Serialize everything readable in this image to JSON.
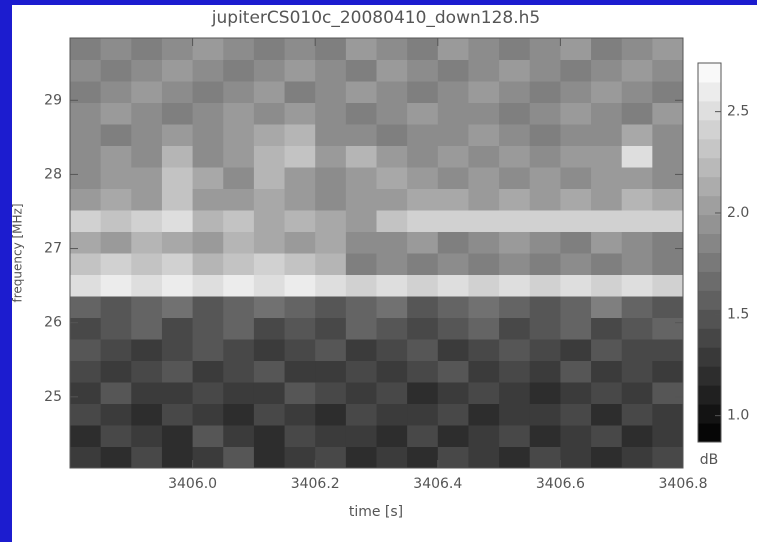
{
  "chart_data": {
    "type": "heatmap",
    "title": "jupiterCS010c_20080410_down128.h5",
    "xlabel": "time [s]",
    "ylabel": "frequency [MHz]",
    "colorbar_label": "dB",
    "colormap": "gray",
    "xlim": [
      3405.8,
      3406.8
    ],
    "ylim": [
      24.04,
      29.84
    ],
    "zlim": [
      0.87,
      2.74
    ],
    "xticks": [
      {
        "value": 3406.0,
        "label": "3406.0"
      },
      3406.2,
      3406.4,
      3406.6,
      3406.8
    ],
    "yticks": [
      25,
      26,
      27,
      28,
      29
    ],
    "colorbar_ticks": [
      {
        "value": 1.0,
        "label": "1.0"
      },
      1.5,
      {
        "value": 2.0,
        "label": "2.0"
      },
      2.5
    ],
    "xbins": [
      3405.8,
      3405.85,
      3405.9,
      3405.95,
      3406.0,
      3406.05,
      3406.1,
      3406.15,
      3406.2,
      3406.25,
      3406.3,
      3406.35,
      3406.4,
      3406.45,
      3406.5,
      3406.55,
      3406.6,
      3406.65,
      3406.7,
      3406.75,
      3406.8
    ],
    "ybins": [
      24.04,
      24.33,
      24.62,
      24.91,
      25.2,
      25.49,
      25.78,
      26.07,
      26.36,
      26.65,
      26.94,
      27.23,
      27.52,
      27.81,
      28.1,
      28.39,
      28.68,
      28.97,
      29.26,
      29.55,
      29.84
    ],
    "values": [
      [
        1.3,
        1.2,
        1.4,
        1.2,
        1.3,
        1.5,
        1.2,
        1.3,
        1.4,
        1.2,
        1.3,
        1.2,
        1.4,
        1.3,
        1.2,
        1.4,
        1.3,
        1.2,
        1.3,
        1.4
      ],
      [
        1.2,
        1.4,
        1.3,
        1.2,
        1.5,
        1.3,
        1.2,
        1.4,
        1.3,
        1.3,
        1.2,
        1.4,
        1.2,
        1.3,
        1.4,
        1.2,
        1.3,
        1.4,
        1.2,
        1.3
      ],
      [
        1.4,
        1.3,
        1.2,
        1.4,
        1.3,
        1.2,
        1.4,
        1.3,
        1.2,
        1.4,
        1.3,
        1.3,
        1.4,
        1.2,
        1.3,
        1.3,
        1.4,
        1.2,
        1.4,
        1.3
      ],
      [
        1.3,
        1.5,
        1.3,
        1.3,
        1.4,
        1.3,
        1.3,
        1.5,
        1.4,
        1.3,
        1.4,
        1.2,
        1.3,
        1.4,
        1.3,
        1.2,
        1.3,
        1.4,
        1.3,
        1.5
      ],
      [
        1.4,
        1.3,
        1.4,
        1.5,
        1.3,
        1.4,
        1.5,
        1.3,
        1.3,
        1.4,
        1.3,
        1.4,
        1.5,
        1.3,
        1.4,
        1.3,
        1.5,
        1.3,
        1.4,
        1.3
      ],
      [
        1.5,
        1.4,
        1.3,
        1.4,
        1.5,
        1.4,
        1.3,
        1.4,
        1.5,
        1.3,
        1.4,
        1.5,
        1.3,
        1.4,
        1.5,
        1.4,
        1.3,
        1.5,
        1.4,
        1.4
      ],
      [
        1.4,
        1.5,
        1.6,
        1.4,
        1.5,
        1.6,
        1.4,
        1.5,
        1.4,
        1.6,
        1.5,
        1.4,
        1.5,
        1.6,
        1.4,
        1.5,
        1.6,
        1.4,
        1.5,
        1.6
      ],
      [
        1.6,
        1.5,
        1.6,
        1.7,
        1.5,
        1.6,
        1.7,
        1.6,
        1.5,
        1.6,
        1.7,
        1.5,
        1.6,
        1.7,
        1.6,
        1.5,
        1.6,
        1.8,
        1.6,
        1.5
      ],
      [
        2.5,
        2.6,
        2.5,
        2.6,
        2.5,
        2.6,
        2.5,
        2.6,
        2.5,
        2.4,
        2.5,
        2.4,
        2.5,
        2.4,
        2.5,
        2.4,
        2.5,
        2.4,
        2.5,
        2.4
      ],
      [
        2.3,
        2.4,
        2.3,
        2.4,
        2.2,
        2.3,
        2.4,
        2.3,
        2.2,
        1.8,
        1.9,
        1.8,
        1.9,
        1.8,
        1.9,
        1.8,
        1.9,
        1.8,
        1.9,
        1.8
      ],
      [
        2.1,
        2.0,
        2.2,
        2.1,
        2.0,
        2.2,
        2.1,
        2.0,
        2.1,
        1.9,
        1.9,
        2.0,
        1.8,
        1.9,
        2.0,
        1.9,
        1.8,
        2.0,
        1.9,
        1.8
      ],
      [
        2.4,
        2.3,
        2.4,
        2.5,
        2.2,
        2.3,
        2.1,
        2.2,
        2.1,
        2.0,
        2.3,
        2.4,
        2.4,
        2.4,
        2.4,
        2.4,
        2.4,
        2.4,
        2.4,
        2.4
      ],
      [
        2.0,
        2.1,
        2.0,
        2.3,
        2.0,
        2.0,
        2.1,
        2.0,
        1.9,
        2.0,
        2.0,
        2.1,
        2.1,
        2.0,
        2.1,
        2.0,
        2.1,
        2.0,
        2.2,
        2.1
      ],
      [
        1.9,
        2.0,
        2.0,
        2.3,
        2.1,
        1.9,
        2.2,
        2.0,
        1.9,
        2.0,
        2.1,
        2.0,
        1.9,
        2.0,
        1.9,
        2.0,
        1.9,
        2.0,
        2.0,
        1.9
      ],
      [
        1.9,
        2.0,
        1.9,
        2.2,
        1.9,
        2.0,
        2.2,
        2.3,
        2.0,
        2.2,
        2.0,
        1.9,
        2.0,
        1.9,
        2.0,
        1.9,
        2.0,
        2.0,
        2.5,
        1.9
      ],
      [
        1.9,
        1.8,
        1.9,
        2.0,
        1.9,
        2.0,
        2.1,
        2.2,
        1.9,
        1.9,
        1.8,
        1.9,
        1.9,
        2.0,
        1.9,
        1.8,
        1.9,
        1.9,
        2.1,
        1.9
      ],
      [
        1.9,
        2.0,
        1.9,
        1.8,
        1.9,
        2.0,
        1.9,
        2.0,
        1.9,
        1.8,
        1.9,
        2.0,
        1.9,
        1.9,
        1.8,
        1.9,
        2.0,
        1.9,
        1.8,
        2.0
      ],
      [
        1.8,
        1.9,
        2.0,
        1.9,
        1.8,
        1.9,
        2.0,
        1.8,
        1.9,
        2.0,
        1.9,
        1.8,
        1.9,
        2.0,
        1.9,
        1.8,
        1.9,
        2.0,
        1.9,
        1.8
      ],
      [
        1.9,
        1.8,
        1.9,
        2.0,
        1.9,
        1.8,
        1.9,
        2.0,
        1.9,
        1.8,
        2.0,
        1.9,
        1.8,
        1.9,
        2.0,
        1.9,
        1.8,
        1.9,
        2.0,
        1.9
      ],
      [
        1.8,
        1.9,
        1.8,
        1.9,
        2.0,
        1.9,
        1.8,
        1.9,
        1.8,
        2.0,
        1.9,
        1.8,
        2.0,
        1.9,
        1.8,
        1.9,
        2.0,
        1.8,
        1.9,
        2.0
      ]
    ]
  }
}
